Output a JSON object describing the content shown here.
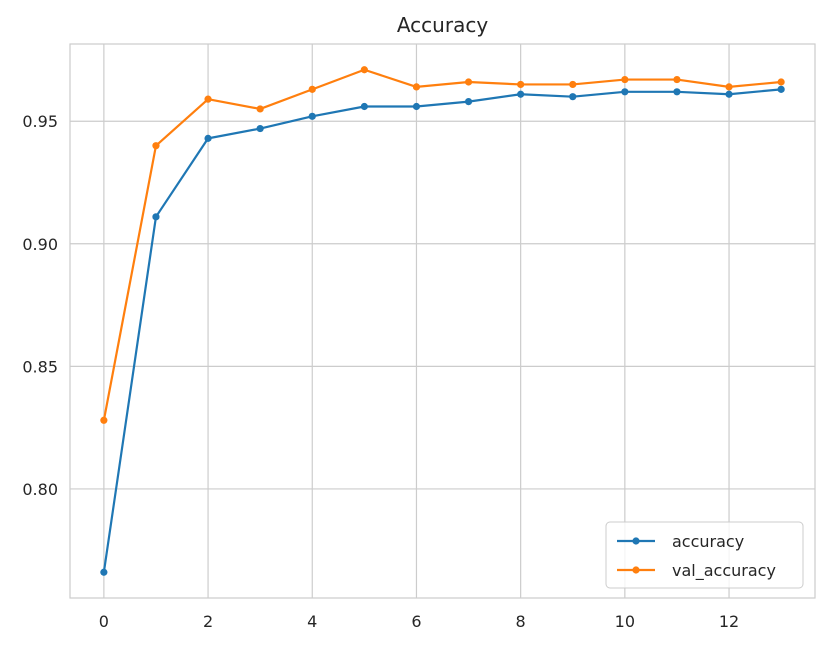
{
  "chart_data": {
    "type": "line",
    "title": "Accuracy",
    "xlabel": "",
    "ylabel": "",
    "x": [
      0,
      1,
      2,
      3,
      4,
      5,
      6,
      7,
      8,
      9,
      10,
      11,
      12,
      13
    ],
    "xlim": [
      -0.65,
      13.65
    ],
    "ylim": [
      0.7555,
      0.9815
    ],
    "xticks": [
      0,
      2,
      4,
      6,
      8,
      10,
      12
    ],
    "xtick_labels": [
      "0",
      "2",
      "4",
      "6",
      "8",
      "10",
      "12"
    ],
    "yticks": [
      0.8,
      0.85,
      0.9,
      0.95
    ],
    "ytick_labels": [
      "0.80",
      "0.85",
      "0.90",
      "0.95"
    ],
    "grid": true,
    "legend_position": "bottom-right",
    "series": [
      {
        "name": "accuracy",
        "color": "#1f77b4",
        "values": [
          0.766,
          0.911,
          0.943,
          0.947,
          0.952,
          0.956,
          0.956,
          0.958,
          0.961,
          0.96,
          0.962,
          0.962,
          0.961,
          0.963
        ]
      },
      {
        "name": "val_accuracy",
        "color": "#ff7f0e",
        "values": [
          0.828,
          0.94,
          0.959,
          0.955,
          0.963,
          0.971,
          0.964,
          0.966,
          0.965,
          0.965,
          0.967,
          0.967,
          0.964,
          0.966
        ]
      }
    ]
  }
}
